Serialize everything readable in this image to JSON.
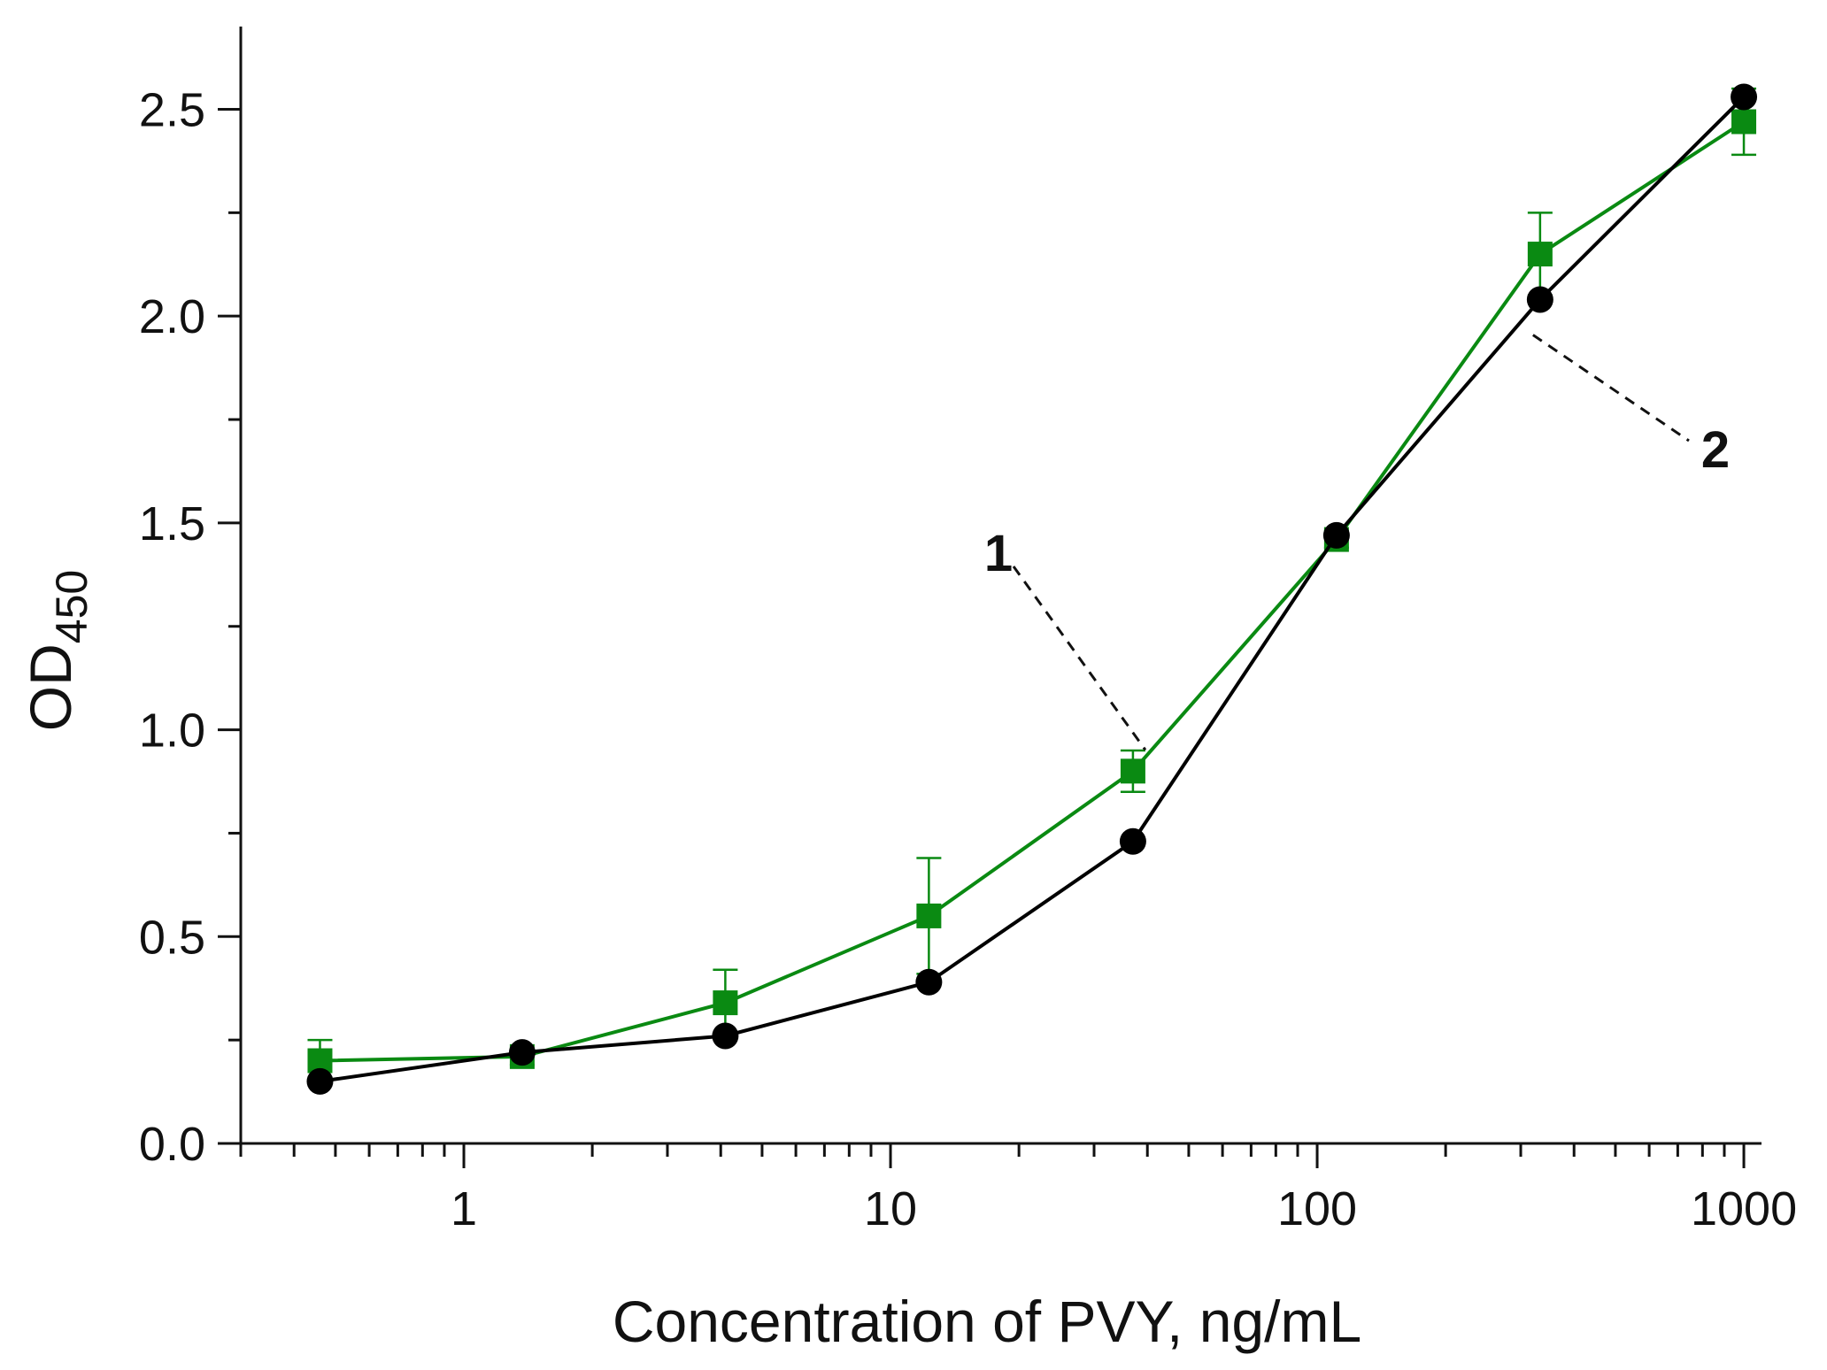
{
  "chart_data": {
    "type": "line",
    "title": "",
    "xlabel": "Concentration of PVY, ng/mL",
    "ylabel_main": "OD",
    "ylabel_sub": "450",
    "xscale": "log",
    "xlim": [
      0.3,
      1100
    ],
    "ylim": [
      0,
      2.7
    ],
    "x_ticks": [
      {
        "value": 1,
        "label": "1"
      },
      {
        "value": 10,
        "label": "10"
      },
      {
        "value": 100,
        "label": "100"
      },
      {
        "value": 1000,
        "label": "1000"
      }
    ],
    "y_ticks": [
      {
        "value": 0.0,
        "label": "0.0"
      },
      {
        "value": 0.5,
        "label": "0.5"
      },
      {
        "value": 1.0,
        "label": "1.0"
      },
      {
        "value": 1.5,
        "label": "1.5"
      },
      {
        "value": 2.0,
        "label": "2.0"
      },
      {
        "value": 2.5,
        "label": "2.5"
      }
    ],
    "x": [
      0.46,
      1.37,
      4.1,
      12.3,
      37,
      111,
      333,
      1000
    ],
    "series": [
      {
        "name": "1",
        "marker": "square",
        "color": "#0a8a12",
        "values": [
          0.2,
          0.21,
          0.34,
          0.55,
          0.9,
          1.46,
          2.15,
          2.47
        ],
        "errors": [
          0.05,
          0.02,
          0.08,
          0.14,
          0.05,
          0.02,
          0.1,
          0.08
        ]
      },
      {
        "name": "2",
        "marker": "circle",
        "color": "#000000",
        "values": [
          0.15,
          0.22,
          0.26,
          0.39,
          0.73,
          1.47,
          2.04,
          2.53
        ],
        "errors": []
      }
    ],
    "annotations": [
      {
        "text": "1",
        "target_series": 0,
        "target_index": 4
      },
      {
        "text": "2",
        "target_series": 1,
        "target_index": 6
      }
    ],
    "grid": false,
    "legend": "none"
  }
}
